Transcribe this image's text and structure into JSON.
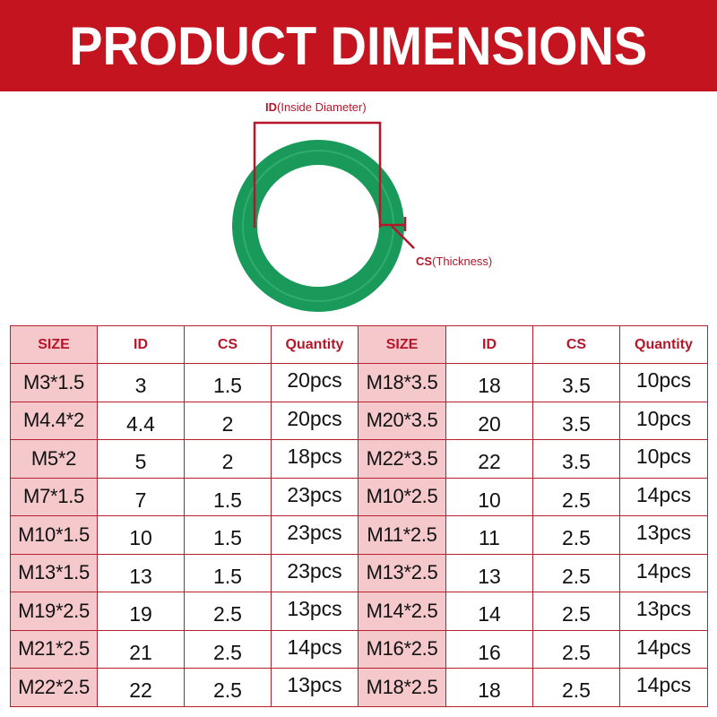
{
  "banner": {
    "title": "PRODUCT DIMENSIONS"
  },
  "colors": {
    "banner_red": "#c3141f",
    "accent_red": "#b5162a",
    "size_cell_pink": "#f5c8cb",
    "ring_green": "#1a9a5a"
  },
  "diagram": {
    "id_label_bold": "ID",
    "id_label_rest": "(Inside Diameter)",
    "cs_label_bold": "CS",
    "cs_label_rest": "(Thickness)",
    "image": "green-o-ring"
  },
  "table": {
    "headers": [
      "SIZE",
      "ID",
      "CS",
      "Quantity"
    ],
    "left": [
      {
        "size": "M3*1.5",
        "id": "3",
        "cs": "1.5",
        "qty": "20pcs"
      },
      {
        "size": "M4.4*2",
        "id": "4.4",
        "cs": "2",
        "qty": "20pcs"
      },
      {
        "size": "M5*2",
        "id": "5",
        "cs": "2",
        "qty": "18pcs"
      },
      {
        "size": "M7*1.5",
        "id": "7",
        "cs": "1.5",
        "qty": "23pcs"
      },
      {
        "size": "M10*1.5",
        "id": "10",
        "cs": "1.5",
        "qty": "23pcs"
      },
      {
        "size": "M13*1.5",
        "id": "13",
        "cs": "1.5",
        "qty": "23pcs"
      },
      {
        "size": "M19*2.5",
        "id": "19",
        "cs": "2.5",
        "qty": "13pcs"
      },
      {
        "size": "M21*2.5",
        "id": "21",
        "cs": "2.5",
        "qty": "14pcs"
      },
      {
        "size": "M22*2.5",
        "id": "22",
        "cs": "2.5",
        "qty": "13pcs"
      }
    ],
    "right": [
      {
        "size": "M18*3.5",
        "id": "18",
        "cs": "3.5",
        "qty": "10pcs"
      },
      {
        "size": "M20*3.5",
        "id": "20",
        "cs": "3.5",
        "qty": "10pcs"
      },
      {
        "size": "M22*3.5",
        "id": "22",
        "cs": "3.5",
        "qty": "10pcs"
      },
      {
        "size": "M10*2.5",
        "id": "10",
        "cs": "2.5",
        "qty": "14pcs"
      },
      {
        "size": "M11*2.5",
        "id": "11",
        "cs": "2.5",
        "qty": "13pcs"
      },
      {
        "size": "M13*2.5",
        "id": "13",
        "cs": "2.5",
        "qty": "14pcs"
      },
      {
        "size": "M14*2.5",
        "id": "14",
        "cs": "2.5",
        "qty": "13pcs"
      },
      {
        "size": "M16*2.5",
        "id": "16",
        "cs": "2.5",
        "qty": "14pcs"
      },
      {
        "size": "M18*2.5",
        "id": "18",
        "cs": "2.5",
        "qty": "14pcs"
      }
    ]
  }
}
